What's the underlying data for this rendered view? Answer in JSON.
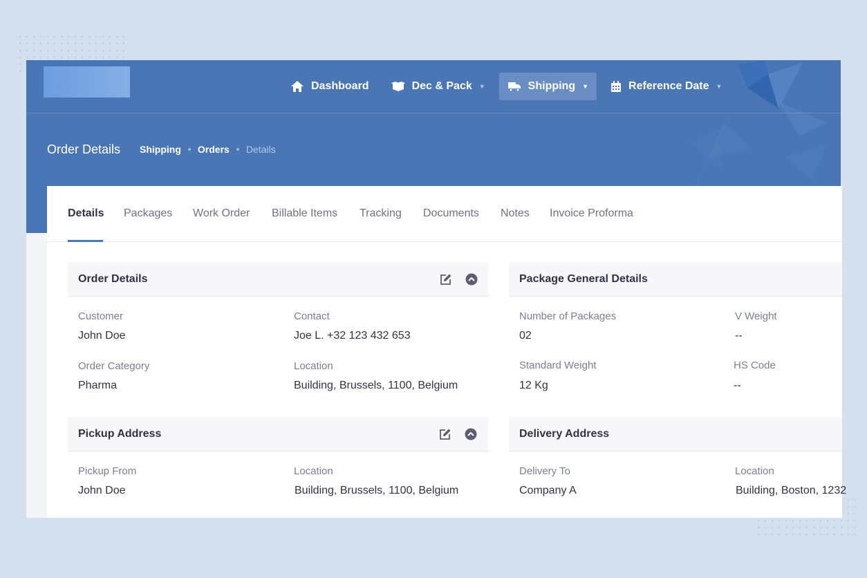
{
  "nav": {
    "items": [
      {
        "label": "Dashboard",
        "icon": "home-icon"
      },
      {
        "label": "Dec & Pack",
        "icon": "box-icon"
      },
      {
        "label": "Shipping",
        "icon": "truck-icon"
      },
      {
        "label": "Reference Date",
        "icon": "calendar-icon"
      }
    ]
  },
  "header": {
    "title": "Order Details",
    "breadcrumb": [
      "Shipping",
      "Orders",
      "Details"
    ]
  },
  "tabs": [
    "Details",
    "Packages",
    "Work Order",
    "Billable Items",
    "Tracking",
    "Documents",
    "Notes",
    "Invoice Proforma"
  ],
  "order_details": {
    "title": "Order Details",
    "customer_label": "Customer",
    "customer": "John Doe",
    "contact_label": "Contact",
    "contact": "Joe L. +32 123 432 653",
    "category_label": "Order Category",
    "category": "Pharma",
    "location_label": "Location",
    "location": "Building, Brussels, 1100, Belgium"
  },
  "package_details": {
    "title": "Package General Details",
    "num_label": "Number of Packages",
    "num": "02",
    "vweight_label": "V Weight",
    "vweight": "--",
    "sweight_label": "Standard Weight",
    "sweight": "12 Kg",
    "hs_label": "HS Code",
    "hs": "--"
  },
  "pickup": {
    "title": "Pickup Address",
    "from_label": "Pickup From",
    "from": "John Doe",
    "location_label": "Location",
    "location": "Building, Brussels, 1100, Belgium"
  },
  "delivery": {
    "title": "Delivery Address",
    "to_label": "Delivery To",
    "to": "Company A",
    "location_label": "Location",
    "location": "Building, Boston, 1232"
  },
  "colors": {
    "primary": "#4a76b6",
    "background": "#d5e0ee",
    "text": "#2f3344",
    "muted": "#7b7e92"
  }
}
